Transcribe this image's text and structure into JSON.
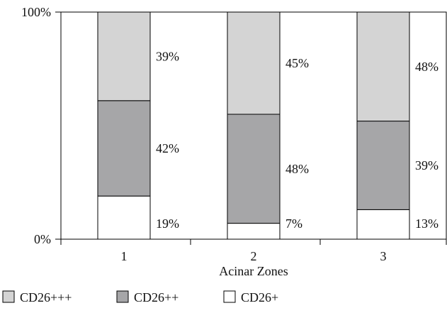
{
  "chart_data": {
    "type": "bar",
    "stacked": true,
    "percent_stacked": true,
    "xlabel": "Acinar Zones",
    "ylabel": "",
    "ylim": [
      0,
      100
    ],
    "y_ticks": [
      "0%",
      "100%"
    ],
    "categories": [
      "1",
      "2",
      "3"
    ],
    "series": [
      {
        "name": "CD26+",
        "values": [
          19,
          7,
          13
        ],
        "labels": [
          "19%",
          "7%",
          "13%"
        ],
        "color": "#ffffff"
      },
      {
        "name": "CD26++",
        "values": [
          42,
          48,
          39
        ],
        "labels": [
          "42%",
          "48%",
          "39%"
        ],
        "color": "#a6a6a8"
      },
      {
        "name": "CD26+++",
        "values": [
          39,
          45,
          48
        ],
        "labels": [
          "39%",
          "45%",
          "48%"
        ],
        "color": "#d4d4d4"
      }
    ],
    "legend": {
      "position": "bottom",
      "order": [
        "CD26+++",
        "CD26++",
        "CD26+"
      ]
    },
    "grid": false
  }
}
